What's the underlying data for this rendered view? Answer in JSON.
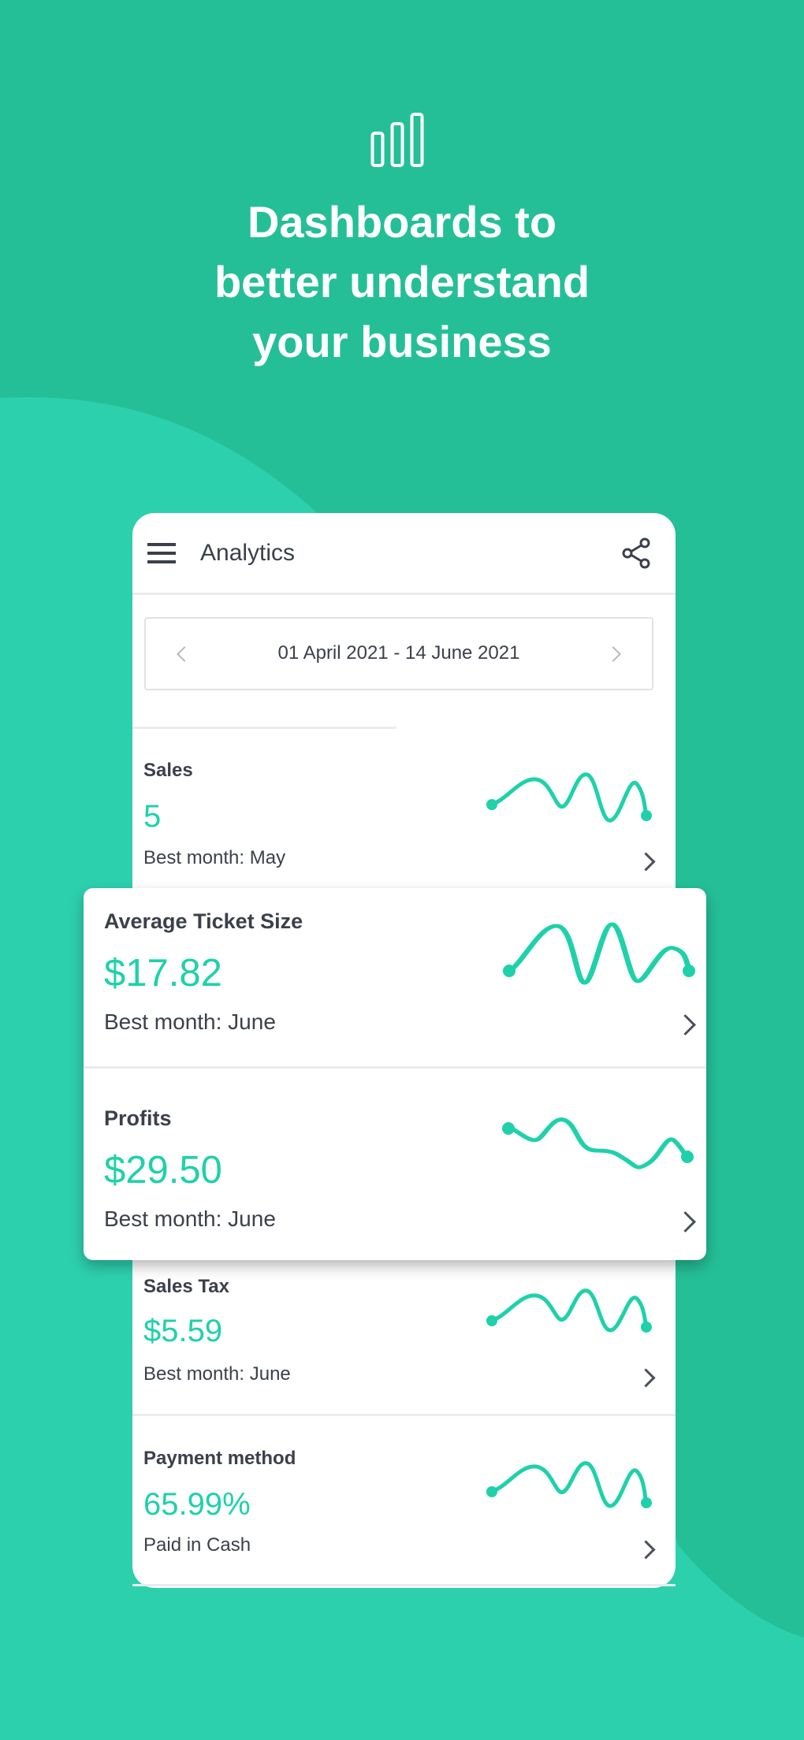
{
  "hero": {
    "icon": "bar-chart-icon",
    "headline_lines": [
      "Dashboards to",
      "better understand",
      "your business"
    ]
  },
  "app": {
    "title": "Analytics",
    "menu_icon": "hamburger-menu-icon",
    "share_icon": "share-icon",
    "date_range": "01 April 2021 - 14 June 2021"
  },
  "metrics": [
    {
      "label": "Sales",
      "value": "5",
      "sub": "Best month: May"
    },
    {
      "label": "Average Ticket Size",
      "value": "$17.82",
      "sub": "Best month: June"
    },
    {
      "label": "Profits",
      "value": "$29.50",
      "sub": "Best month: June"
    },
    {
      "label": "Sales Tax",
      "value": "$5.59",
      "sub": "Best month: June"
    },
    {
      "label": "Payment method",
      "value": "65.99%",
      "sub": "Paid in Cash"
    }
  ],
  "colors": {
    "background": "#24bf97",
    "background_light": "#2dd0ad",
    "accent": "#1fd1aa",
    "text": "#3b404b"
  }
}
